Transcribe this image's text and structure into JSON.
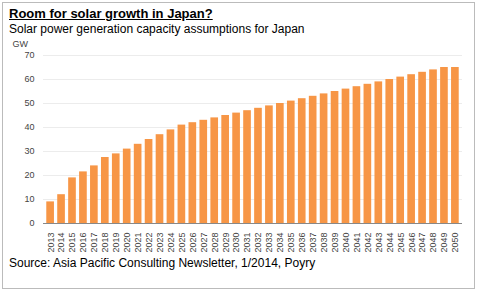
{
  "chart_data": {
    "type": "bar",
    "title": "Room for solar growth in Japan?",
    "subtitle": "Solar power generation capacity assumptions for Japan",
    "caption": "Source: Asia Pacific Consulting Newsletter, 1/2014, Poyry",
    "y_label": "GW",
    "categories": [
      "2013",
      "2014",
      "2015",
      "2016",
      "2017",
      "2018",
      "2019",
      "2020",
      "2021",
      "2022",
      "2023",
      "2024",
      "2025",
      "2026",
      "2027",
      "2028",
      "2029",
      "2030",
      "2031",
      "2032",
      "2033",
      "2034",
      "2035",
      "2036",
      "2037",
      "2038",
      "2039",
      "2040",
      "2041",
      "2042",
      "2043",
      "2044",
      "2045",
      "2046",
      "2047",
      "2048",
      "2049",
      "2050"
    ],
    "values": [
      9,
      12,
      19,
      21.5,
      24,
      27.5,
      29,
      31,
      33,
      35,
      37,
      39,
      41,
      42,
      43,
      44,
      45,
      46,
      47,
      48,
      49,
      50,
      51,
      52,
      53,
      54,
      55,
      56,
      57,
      58,
      59,
      60,
      61,
      62,
      63,
      64,
      65,
      65
    ],
    "color": "#f79646",
    "ylim": [
      0,
      70
    ],
    "yticks": [
      0,
      10,
      20,
      30,
      40,
      50,
      60,
      70
    ],
    "grid": true
  }
}
